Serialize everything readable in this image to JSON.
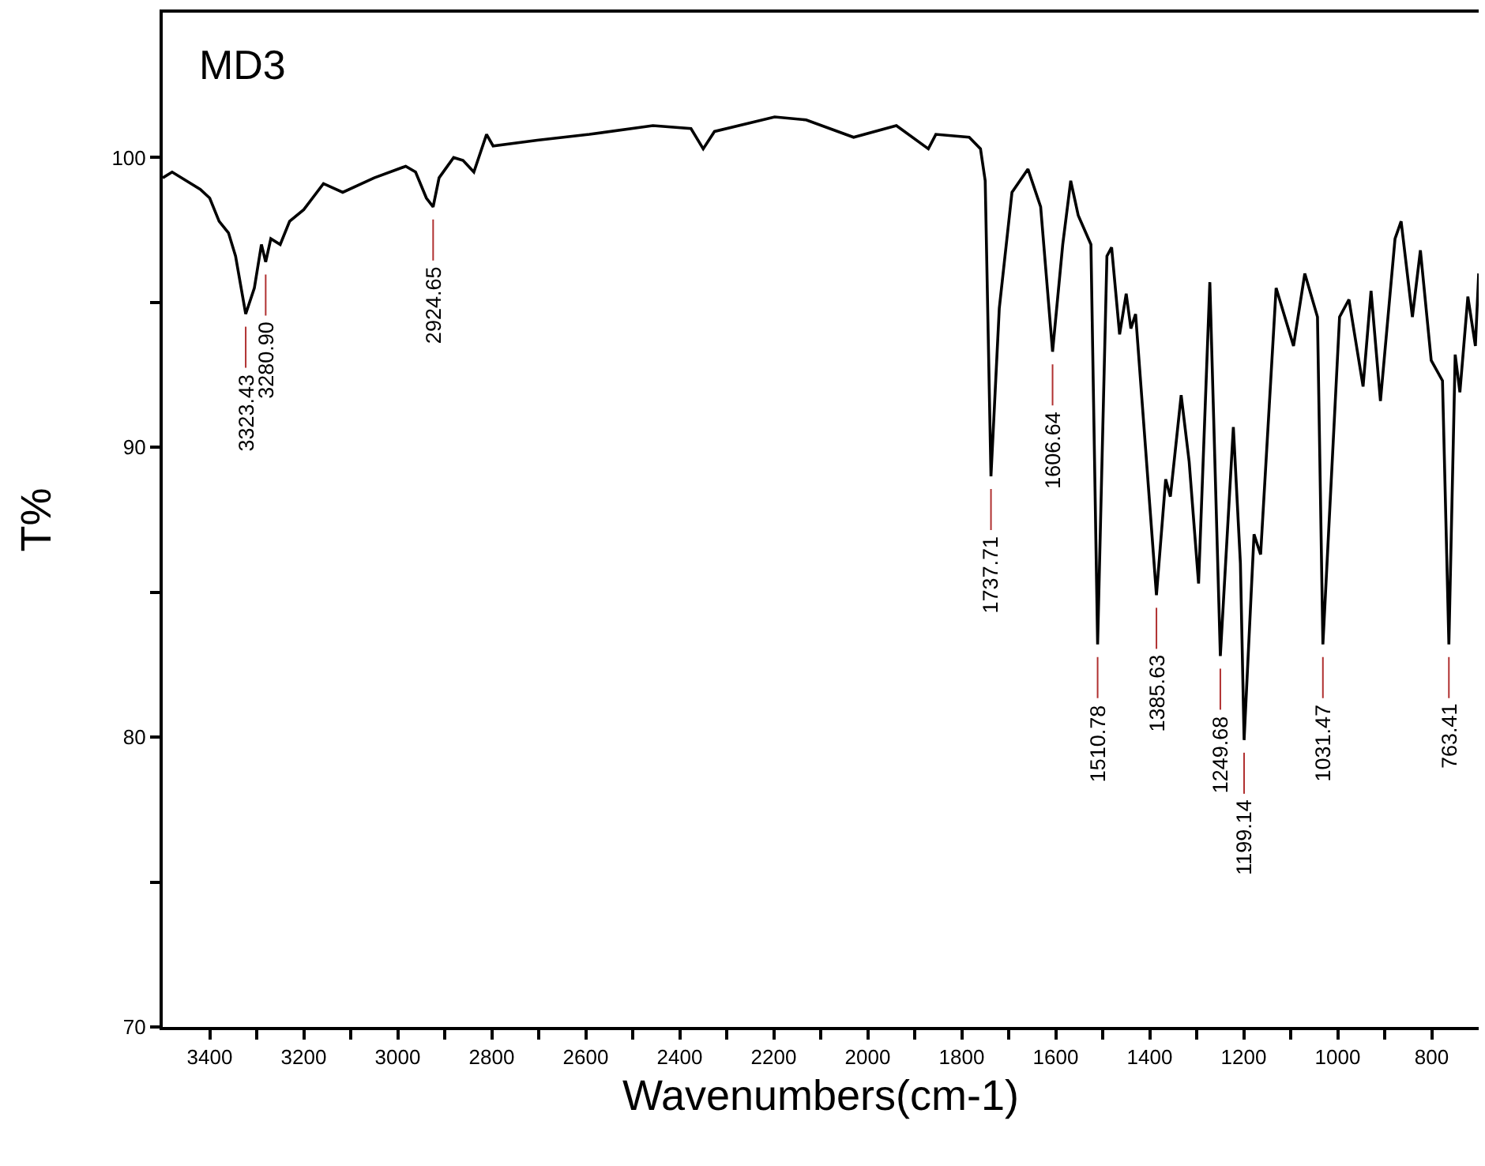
{
  "chart_data": {
    "type": "line",
    "title": "MD3",
    "xlabel": "Wavenumbers(cm-1)",
    "ylabel": "T%",
    "x": [
      3500,
      3480,
      3450,
      3420,
      3400,
      3380,
      3360,
      3345,
      3323.43,
      3305,
      3290,
      3280.9,
      3270,
      3250,
      3230,
      3200,
      3158,
      3117,
      3050,
      2983,
      2962,
      2939,
      2924.65,
      2912,
      2881,
      2861,
      2838,
      2811,
      2797,
      2703,
      2592,
      2457,
      2376,
      2350,
      2326,
      2198,
      2131,
      2030,
      1939,
      1871,
      1855,
      1784,
      1760,
      1750,
      1737.71,
      1720,
      1693,
      1659,
      1632,
      1606.64,
      1585,
      1568,
      1552,
      1525,
      1510.78,
      1491,
      1481,
      1464,
      1450,
      1440,
      1430,
      1385.63,
      1366,
      1356,
      1333,
      1316,
      1296,
      1272,
      1249.68,
      1222,
      1207,
      1199.14,
      1178,
      1164,
      1131,
      1094,
      1070,
      1043,
      1031.47,
      996,
      976,
      946,
      929,
      909,
      878,
      865,
      841,
      824,
      801,
      777,
      763.41,
      750,
      740,
      723,
      707,
      700
    ],
    "series": [
      {
        "color": "#000000",
        "values": [
          99.3,
          99.5,
          99.2,
          98.9,
          98.6,
          97.8,
          97.4,
          96.6,
          94.6,
          95.5,
          97.0,
          96.4,
          97.2,
          97.0,
          97.8,
          98.2,
          99.1,
          98.8,
          99.3,
          99.7,
          99.5,
          98.6,
          98.3,
          99.3,
          100.0,
          99.9,
          99.5,
          100.8,
          100.4,
          100.6,
          100.8,
          101.1,
          101.0,
          100.3,
          100.9,
          101.4,
          101.3,
          100.7,
          101.1,
          100.3,
          100.8,
          100.7,
          100.3,
          99.2,
          89.0,
          94.8,
          98.8,
          99.6,
          98.3,
          93.3,
          97.0,
          99.2,
          98.0,
          97.0,
          83.2,
          96.6,
          96.9,
          93.9,
          95.3,
          94.1,
          94.6,
          84.9,
          88.9,
          88.3,
          91.8,
          89.5,
          85.3,
          95.7,
          82.8,
          90.7,
          86.0,
          79.9,
          87.0,
          86.3,
          95.5,
          93.5,
          96.0,
          94.5,
          83.2,
          94.5,
          95.1,
          92.1,
          95.4,
          91.6,
          97.2,
          97.8,
          94.5,
          96.8,
          93.0,
          92.3,
          83.2,
          93.2,
          91.9,
          95.2,
          93.5,
          96.0
        ]
      }
    ],
    "xlim": [
      3500,
      700
    ],
    "ylim": [
      70,
      105
    ],
    "xticks": [
      3400,
      {
        "value": 3300,
        "label": null
      },
      3200,
      {
        "value": 3100,
        "label": null
      },
      3000,
      {
        "value": 2900,
        "label": null
      },
      2800,
      {
        "value": 2700,
        "label": null
      },
      2600,
      {
        "value": 2500,
        "label": null
      },
      2400,
      {
        "value": 2300,
        "label": null
      },
      2200,
      {
        "value": 2100,
        "label": null
      },
      2000,
      {
        "value": 1900,
        "label": null
      },
      1800,
      {
        "value": 1700,
        "label": null
      },
      1600,
      {
        "value": 1500,
        "label": null
      },
      1400,
      {
        "value": 1300,
        "label": null
      },
      1200,
      {
        "value": 1100,
        "label": null
      },
      1000,
      {
        "value": 900,
        "label": null
      },
      800
    ],
    "yticks": [
      70,
      {
        "value": 75,
        "label": null
      },
      80,
      {
        "value": 85,
        "label": null
      },
      90,
      {
        "value": 95,
        "label": null
      },
      100
    ],
    "marker": "none",
    "line_style": "solid",
    "annotations": [
      {
        "text": "3323.43",
        "x": 3323.43,
        "y": 94.6
      },
      {
        "text": "3280.90",
        "x": 3280.9,
        "y": 96.4
      },
      {
        "text": "2924.65",
        "x": 2924.65,
        "y": 98.3
      },
      {
        "text": "1737.71",
        "x": 1737.71,
        "y": 89.0
      },
      {
        "text": "1606.64",
        "x": 1606.64,
        "y": 93.3
      },
      {
        "text": "1510.78",
        "x": 1510.78,
        "y": 83.2
      },
      {
        "text": "1385.63",
        "x": 1385.63,
        "y": 84.9
      },
      {
        "text": "1249.68",
        "x": 1249.68,
        "y": 82.8
      },
      {
        "text": "1199.14",
        "x": 1199.14,
        "y": 79.9
      },
      {
        "text": "1031.47",
        "x": 1031.47,
        "y": 83.2
      },
      {
        "text": "763.41",
        "x": 763.41,
        "y": 83.2
      }
    ]
  }
}
